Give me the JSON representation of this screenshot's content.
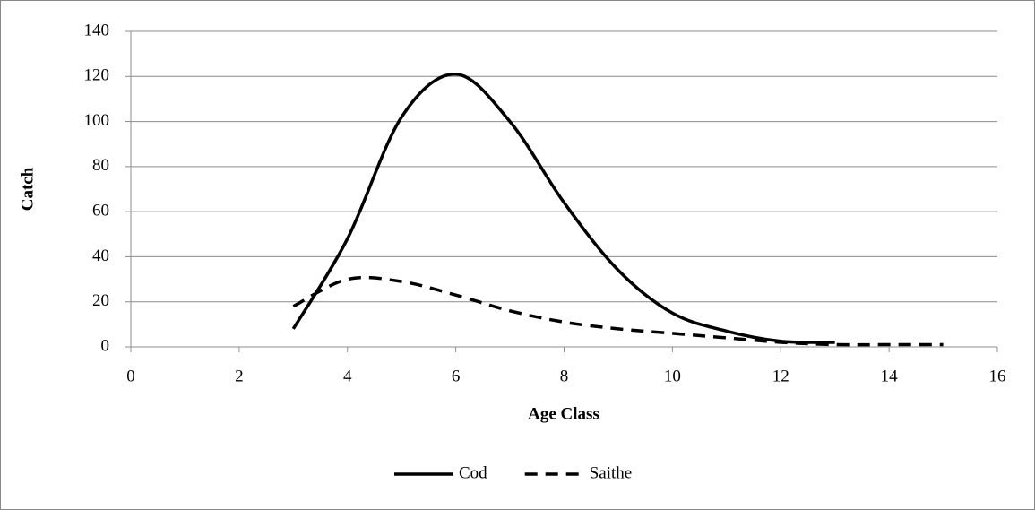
{
  "chart_data": {
    "type": "line",
    "x_label": "Age Class",
    "y_label": "Catch",
    "xlim": [
      0,
      16
    ],
    "xticks": [
      0,
      2,
      4,
      6,
      8,
      10,
      12,
      14,
      16
    ],
    "ylim": [
      0,
      140
    ],
    "yticks": [
      0,
      20,
      40,
      60,
      80,
      100,
      120,
      140
    ],
    "grid": true,
    "smooth": true,
    "legend": "bottom",
    "series": [
      {
        "name": "Cod",
        "color": "#000000",
        "dash": "solid",
        "x": [
          3,
          4,
          5,
          6,
          7,
          8,
          9,
          10,
          11,
          12,
          13
        ],
        "values": [
          8,
          48,
          102,
          121,
          100,
          64,
          34,
          15,
          7,
          2.5,
          2
        ]
      },
      {
        "name": "Saithe",
        "color": "#000000",
        "dash": "dashed",
        "x": [
          3,
          4,
          5,
          6,
          7,
          8,
          9,
          10,
          11,
          12,
          13,
          14,
          15
        ],
        "values": [
          18,
          30,
          29,
          23,
          16,
          11,
          8,
          6,
          4,
          2,
          1,
          1,
          1
        ]
      }
    ]
  }
}
